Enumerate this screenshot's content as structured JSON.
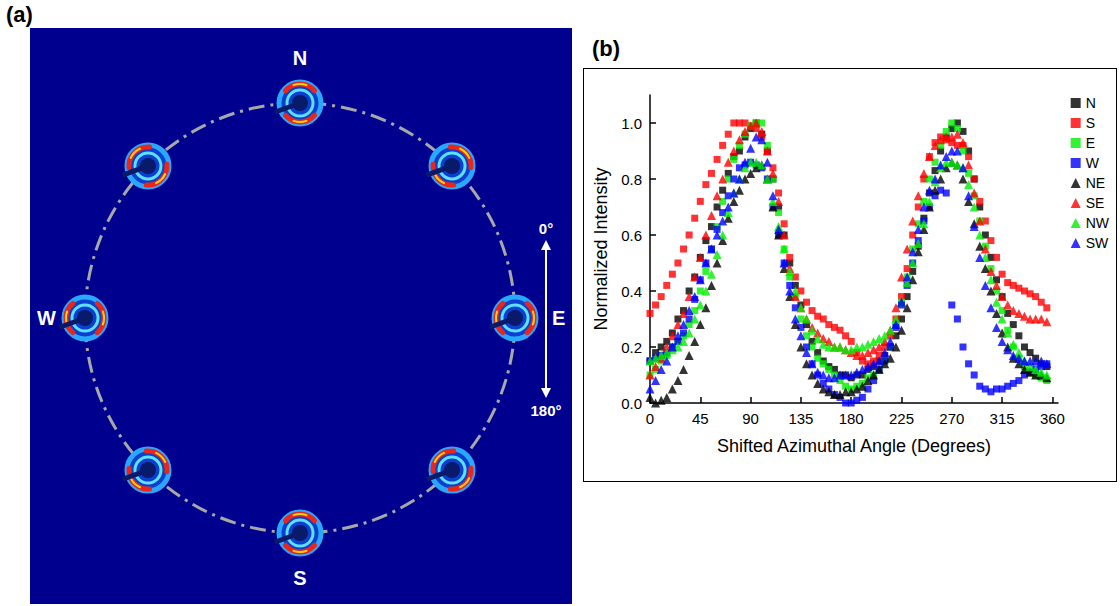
{
  "panel_a": {
    "label": "(a)",
    "compass": [
      "N",
      "E",
      "S",
      "W"
    ],
    "arrow_labels": [
      "0°",
      "180°"
    ]
  },
  "chart_data": {
    "type": "scatter",
    "label": "(b)",
    "xlabel": "Shifted Azimuthal Angle (Degrees)",
    "ylabel": "Normalized Intensity",
    "xlim": [
      0,
      365
    ],
    "xticks": [
      0,
      45,
      90,
      135,
      180,
      225,
      270,
      315,
      360
    ],
    "ylim": [
      0,
      1.1
    ],
    "yticks": [
      {
        "value": 0,
        "label": "0.0"
      },
      0.2,
      0.4,
      0.6,
      0.8,
      {
        "value": 1,
        "label": "1.0"
      }
    ],
    "grid": false,
    "legend": "right",
    "x": [
      0,
      5,
      10,
      15,
      20,
      25,
      30,
      35,
      40,
      45,
      50,
      55,
      60,
      65,
      70,
      75,
      80,
      85,
      90,
      95,
      100,
      105,
      110,
      115,
      120,
      125,
      130,
      135,
      140,
      145,
      150,
      155,
      160,
      165,
      170,
      175,
      180,
      185,
      190,
      195,
      200,
      205,
      210,
      215,
      220,
      225,
      230,
      235,
      240,
      245,
      250,
      255,
      260,
      265,
      270,
      275,
      280,
      285,
      290,
      295,
      300,
      305,
      310,
      315,
      320,
      325,
      330,
      335,
      340,
      345,
      350,
      355
    ],
    "series": [
      {
        "name": "N",
        "color": "#000000",
        "marker": "square",
        "values": [
          0.15,
          0.18,
          0.2,
          0.22,
          0.25,
          0.3,
          0.33,
          0.4,
          0.45,
          0.52,
          0.58,
          0.63,
          0.7,
          0.76,
          0.82,
          0.88,
          0.9,
          0.95,
          0.98,
          1.0,
          0.96,
          0.9,
          0.8,
          0.7,
          0.6,
          0.5,
          0.42,
          0.35,
          0.28,
          0.22,
          0.18,
          0.15,
          0.13,
          0.12,
          0.1,
          0.1,
          0.09,
          0.1,
          0.1,
          0.12,
          0.13,
          0.15,
          0.17,
          0.2,
          0.24,
          0.3,
          0.38,
          0.47,
          0.56,
          0.66,
          0.75,
          0.83,
          0.9,
          0.95,
          0.98,
          1.0,
          0.97,
          0.9,
          0.8,
          0.7,
          0.6,
          0.52,
          0.44,
          0.38,
          0.32,
          0.28,
          0.24,
          0.2,
          0.18,
          0.16,
          0.14,
          0.13
        ]
      },
      {
        "name": "S",
        "color": "#ff0000",
        "marker": "square",
        "values": [
          0.32,
          0.35,
          0.38,
          0.42,
          0.46,
          0.5,
          0.55,
          0.6,
          0.66,
          0.72,
          0.78,
          0.82,
          0.87,
          0.92,
          0.96,
          1.0,
          1.0,
          1.0,
          0.99,
          0.98,
          0.95,
          0.9,
          0.84,
          0.75,
          0.64,
          0.52,
          0.45,
          0.4,
          0.36,
          0.33,
          0.31,
          0.3,
          0.28,
          0.27,
          0.26,
          0.24,
          0.22,
          0.18,
          0.15,
          0.14,
          0.15,
          0.17,
          0.2,
          0.24,
          0.3,
          0.38,
          0.48,
          0.6,
          0.7,
          0.8,
          0.88,
          0.93,
          0.95,
          0.94,
          0.93,
          0.92,
          0.92,
          0.88,
          0.8,
          0.72,
          0.65,
          0.58,
          0.52,
          0.46,
          0.43,
          0.42,
          0.41,
          0.4,
          0.39,
          0.38,
          0.36,
          0.34
        ]
      },
      {
        "name": "E",
        "color": "#00ee00",
        "marker": "square",
        "values": [
          0.1,
          0.12,
          0.15,
          0.17,
          0.2,
          0.22,
          0.24,
          0.28,
          0.33,
          0.4,
          0.47,
          0.55,
          0.63,
          0.72,
          0.8,
          0.87,
          0.92,
          0.96,
          0.99,
          1.0,
          1.0,
          0.92,
          0.8,
          0.68,
          0.55,
          0.45,
          0.38,
          0.3,
          0.24,
          0.2,
          0.16,
          0.14,
          0.12,
          0.1,
          0.08,
          0.06,
          0.05,
          0.06,
          0.07,
          0.09,
          0.1,
          0.12,
          0.15,
          0.2,
          0.28,
          0.36,
          0.45,
          0.55,
          0.64,
          0.72,
          0.8,
          0.86,
          0.92,
          0.97,
          1.0,
          0.98,
          0.9,
          0.82,
          0.74,
          0.65,
          0.56,
          0.48,
          0.4,
          0.33,
          0.26,
          0.2,
          0.16,
          0.13,
          0.11,
          0.1,
          0.09,
          0.08
        ]
      },
      {
        "name": "W",
        "color": "#0000ff",
        "marker": "square",
        "values": [
          0.15,
          0.16,
          0.17,
          0.18,
          0.2,
          0.22,
          0.25,
          0.3,
          0.37,
          0.44,
          0.5,
          0.55,
          0.62,
          0.68,
          0.74,
          0.8,
          0.84,
          0.85,
          0.86,
          0.85,
          0.84,
          0.8,
          0.7,
          0.6,
          0.5,
          0.42,
          0.34,
          0.27,
          0.2,
          0.14,
          0.1,
          0.07,
          0.05,
          0.03,
          0.02,
          0.0,
          0.0,
          0.01,
          0.02,
          0.05,
          0.08,
          0.12,
          0.15,
          0.2,
          0.27,
          0.35,
          0.42,
          0.5,
          0.58,
          0.65,
          0.7,
          0.74,
          0.76,
          0.75,
          0.35,
          0.3,
          0.2,
          0.14,
          0.1,
          0.06,
          0.05,
          0.04,
          0.05,
          0.05,
          0.06,
          0.07,
          0.08,
          0.1,
          0.11,
          0.12,
          0.13,
          0.14
        ]
      },
      {
        "name": "NE",
        "color": "#000000",
        "marker": "triangle",
        "values": [
          0.02,
          0.0,
          0.01,
          0.02,
          0.05,
          0.08,
          0.12,
          0.17,
          0.22,
          0.28,
          0.34,
          0.42,
          0.5,
          0.58,
          0.66,
          0.72,
          0.76,
          0.8,
          0.82,
          0.84,
          0.85,
          0.8,
          0.7,
          0.6,
          0.48,
          0.38,
          0.28,
          0.2,
          0.14,
          0.1,
          0.07,
          0.05,
          0.04,
          0.03,
          0.03,
          0.04,
          0.04,
          0.05,
          0.06,
          0.08,
          0.1,
          0.12,
          0.14,
          0.16,
          0.2,
          0.26,
          0.34,
          0.44,
          0.54,
          0.62,
          0.7,
          0.76,
          0.8,
          0.84,
          0.86,
          0.85,
          0.8,
          0.72,
          0.64,
          0.56,
          0.48,
          0.4,
          0.32,
          0.25,
          0.2,
          0.16,
          0.14,
          0.12,
          0.11,
          0.1,
          0.1,
          0.09
        ]
      },
      {
        "name": "SE",
        "color": "#ff0000",
        "marker": "triangle",
        "values": [
          0.1,
          0.13,
          0.16,
          0.2,
          0.24,
          0.28,
          0.32,
          0.38,
          0.45,
          0.52,
          0.6,
          0.67,
          0.74,
          0.8,
          0.86,
          0.9,
          0.94,
          0.97,
          0.99,
          1.0,
          0.97,
          0.9,
          0.82,
          0.72,
          0.6,
          0.48,
          0.38,
          0.34,
          0.3,
          0.27,
          0.25,
          0.23,
          0.22,
          0.2,
          0.2,
          0.19,
          0.18,
          0.17,
          0.17,
          0.18,
          0.19,
          0.2,
          0.22,
          0.26,
          0.34,
          0.45,
          0.55,
          0.65,
          0.74,
          0.82,
          0.88,
          0.92,
          0.94,
          0.95,
          0.95,
          0.96,
          0.93,
          0.85,
          0.75,
          0.65,
          0.55,
          0.47,
          0.42,
          0.38,
          0.35,
          0.33,
          0.32,
          0.31,
          0.3,
          0.3,
          0.3,
          0.29
        ]
      },
      {
        "name": "NW",
        "color": "#00ee00",
        "marker": "triangle",
        "values": [
          0.15,
          0.16,
          0.17,
          0.18,
          0.19,
          0.2,
          0.22,
          0.25,
          0.3,
          0.35,
          0.4,
          0.46,
          0.53,
          0.6,
          0.68,
          0.75,
          0.8,
          0.84,
          0.86,
          0.86,
          0.85,
          0.8,
          0.72,
          0.63,
          0.55,
          0.47,
          0.4,
          0.34,
          0.3,
          0.26,
          0.23,
          0.21,
          0.2,
          0.2,
          0.2,
          0.19,
          0.19,
          0.2,
          0.2,
          0.21,
          0.22,
          0.23,
          0.24,
          0.26,
          0.3,
          0.36,
          0.43,
          0.5,
          0.57,
          0.64,
          0.72,
          0.79,
          0.84,
          0.86,
          0.86,
          0.85,
          0.84,
          0.78,
          0.7,
          0.6,
          0.52,
          0.44,
          0.36,
          0.3,
          0.25,
          0.21,
          0.18,
          0.15,
          0.13,
          0.12,
          0.11,
          0.1
        ]
      },
      {
        "name": "SW",
        "color": "#0000ff",
        "marker": "triangle",
        "values": [
          0.05,
          0.08,
          0.12,
          0.15,
          0.2,
          0.24,
          0.28,
          0.33,
          0.38,
          0.44,
          0.5,
          0.55,
          0.6,
          0.65,
          0.7,
          0.75,
          0.8,
          0.86,
          0.91,
          0.95,
          0.94,
          0.86,
          0.74,
          0.62,
          0.5,
          0.4,
          0.3,
          0.24,
          0.18,
          0.14,
          0.11,
          0.1,
          0.09,
          0.09,
          0.1,
          0.1,
          0.1,
          0.11,
          0.12,
          0.13,
          0.14,
          0.15,
          0.18,
          0.22,
          0.28,
          0.36,
          0.45,
          0.54,
          0.62,
          0.7,
          0.76,
          0.8,
          0.85,
          0.88,
          0.9,
          0.9,
          0.84,
          0.74,
          0.63,
          0.52,
          0.42,
          0.34,
          0.27,
          0.22,
          0.19,
          0.17,
          0.16,
          0.15,
          0.15,
          0.15,
          0.15,
          0.14
        ]
      }
    ]
  }
}
